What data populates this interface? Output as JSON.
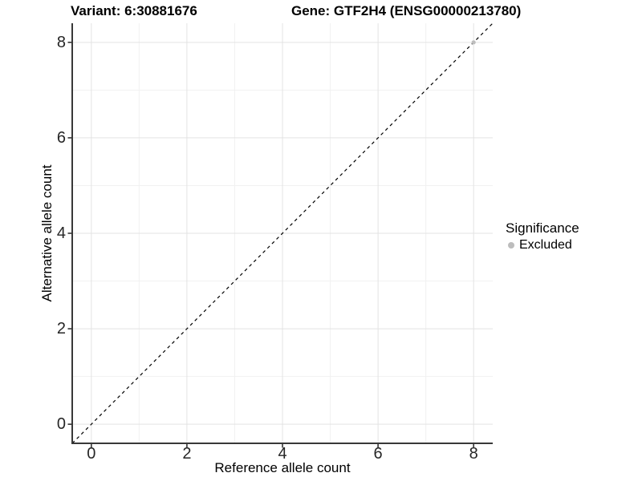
{
  "titles": {
    "variant": "Variant: 6:30881676",
    "gene": "Gene: GTF2H4 (ENSG00000213780)"
  },
  "legend": {
    "title": "Significance",
    "items": [
      {
        "label": "Excluded",
        "color": "#bdbdbd"
      }
    ]
  },
  "colors": {
    "background": "#ffffff",
    "grid_major": "#e3e3e3",
    "grid_minor": "#f1f1f1",
    "axis_line": "#383838",
    "tick_mark": "#333333",
    "dashed_line": "#000000",
    "point": "#bdbdbd"
  },
  "chart_data": {
    "type": "scatter",
    "title": "Variant: 6:30881676 | Gene: GTF2H4 (ENSG00000213780)",
    "xlabel": "Reference allele count",
    "ylabel": "Alternative allele count",
    "xlim": [
      -0.4,
      8.4
    ],
    "ylim": [
      -0.4,
      8.4
    ],
    "x_ticks": [
      0,
      2,
      4,
      6,
      8
    ],
    "y_ticks": [
      0,
      2,
      4,
      6,
      8
    ],
    "x_minor_ticks": [
      1,
      3,
      5,
      7
    ],
    "y_minor_ticks": [
      1,
      3,
      5,
      7
    ],
    "grid": "major+minor",
    "legend_position": "right",
    "series": [
      {
        "name": "Excluded",
        "color": "#bdbdbd",
        "marker": "circle",
        "points": [
          [
            8,
            8
          ]
        ]
      }
    ],
    "annotations": [
      {
        "type": "abline",
        "slope": 1,
        "intercept": 0,
        "style": "dashed",
        "color": "#000000"
      }
    ]
  }
}
